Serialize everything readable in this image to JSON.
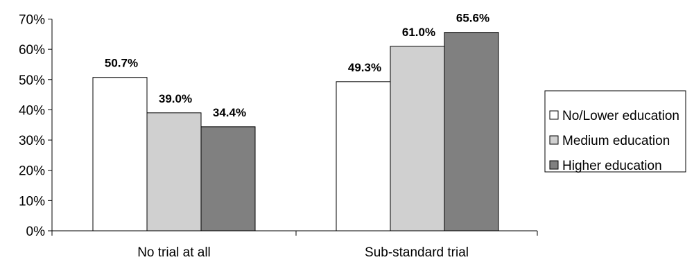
{
  "chart_data": {
    "type": "bar",
    "categories": [
      "No trial at all",
      "Sub-standard trial"
    ],
    "series": [
      {
        "name": "No/Lower education",
        "values": [
          50.7,
          49.3
        ],
        "labels": [
          "50.7%",
          "49.3%"
        ],
        "color": "#ffffff"
      },
      {
        "name": "Medium education",
        "values": [
          39.0,
          61.0
        ],
        "labels": [
          "39.0%",
          "61.0%"
        ],
        "color": "#d0d0d0"
      },
      {
        "name": "Higher education",
        "values": [
          34.4,
          65.6
        ],
        "labels": [
          "34.4%",
          "65.6%"
        ],
        "color": "#808080"
      }
    ],
    "y_ticks": [
      "0%",
      "10%",
      "20%",
      "30%",
      "40%",
      "50%",
      "60%",
      "70%"
    ],
    "ylim": [
      0,
      70
    ],
    "ylabel": "",
    "xlabel": "",
    "grid": false,
    "legend_position": "right"
  }
}
